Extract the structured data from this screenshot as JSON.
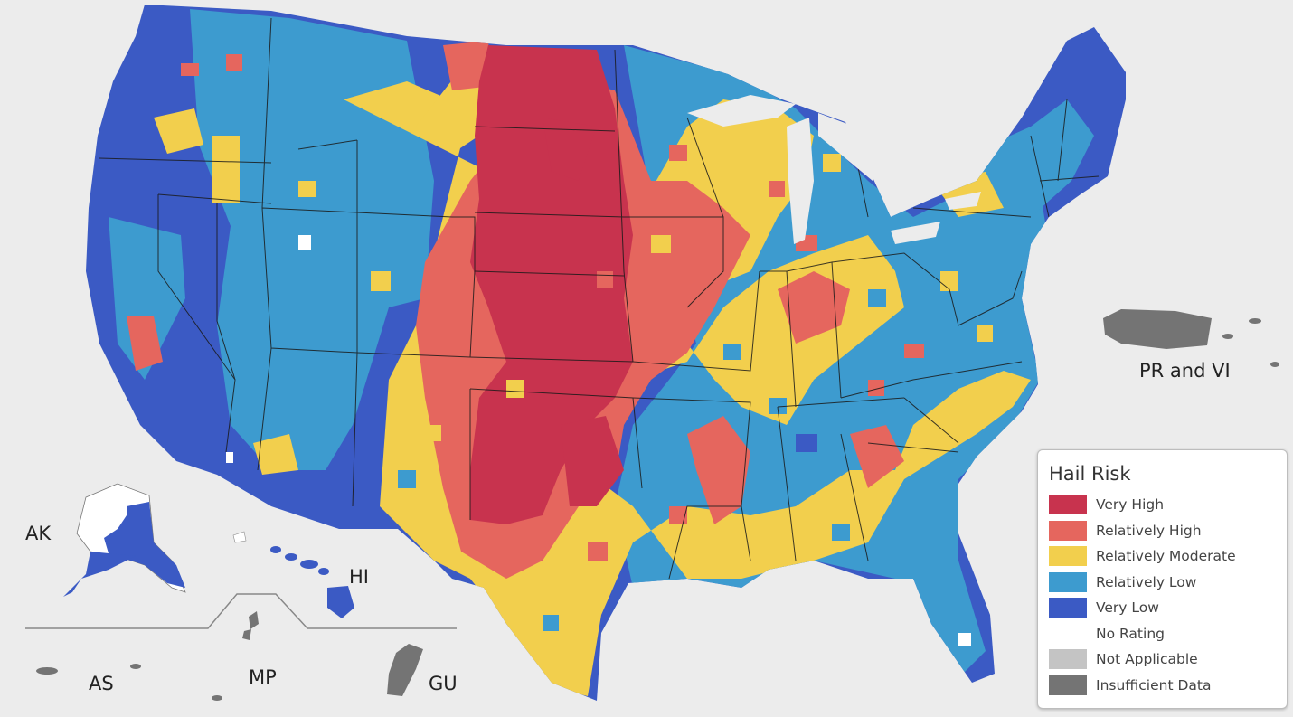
{
  "legend": {
    "title": "Hail Risk",
    "items": [
      {
        "label": "Very High",
        "color": "#c8334e"
      },
      {
        "label": "Relatively High",
        "color": "#e5665e"
      },
      {
        "label": "Relatively Moderate",
        "color": "#f2cf4d"
      },
      {
        "label": "Relatively Low",
        "color": "#3d9bcf"
      },
      {
        "label": "Very Low",
        "color": "#3b5ac4"
      },
      {
        "label": "No Rating",
        "color": "#ffffff"
      },
      {
        "label": "Not Applicable",
        "color": "#c4c4c4"
      },
      {
        "label": "Insufficient Data",
        "color": "#747474"
      }
    ]
  },
  "regions": {
    "ak": "AK",
    "hi": "HI",
    "pr_vi": "PR and VI",
    "as": "AS",
    "mp": "MP",
    "gu": "GU"
  },
  "colors": {
    "background": "#ececec",
    "state_border": "#1a1a1a",
    "inset_divider": "#888888"
  }
}
